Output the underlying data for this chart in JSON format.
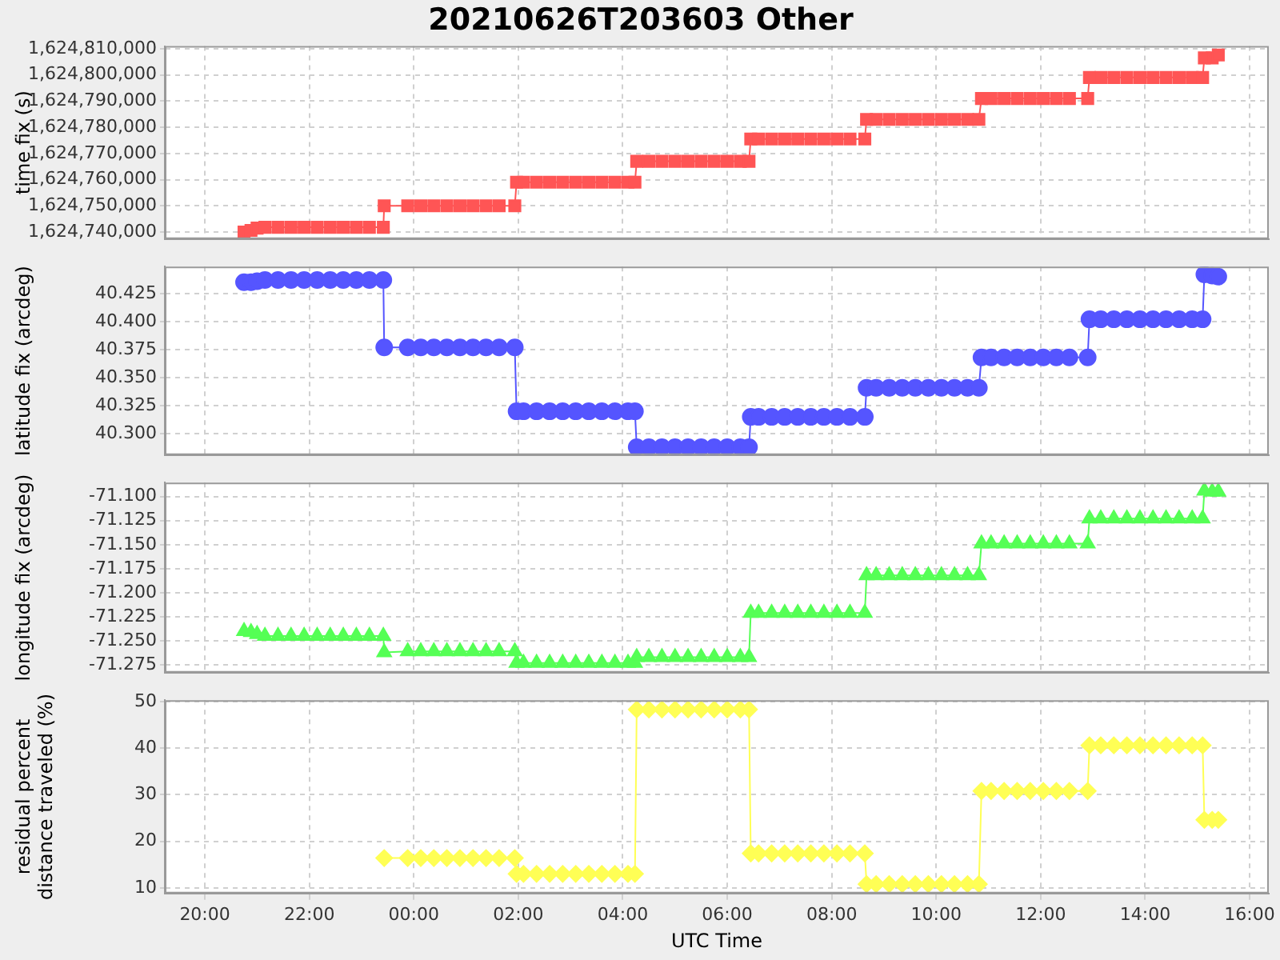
{
  "chart_data": [
    {
      "type": "line",
      "title": "20210626T203603 Other",
      "ylabel": "time fix (s)",
      "marker": "square",
      "grid": true,
      "tick_labels": "y",
      "x": [
        "2021-06-26T20:45",
        "2021-06-26T20:53",
        "2021-06-26T21:00",
        "2021-06-26T21:09",
        "2021-06-26T21:24",
        "2021-06-26T21:39",
        "2021-06-26T21:54",
        "2021-06-26T22:09",
        "2021-06-26T22:24",
        "2021-06-26T22:39",
        "2021-06-26T22:54",
        "2021-06-26T23:09",
        "2021-06-26T23:25",
        "2021-06-26T23:26",
        "2021-06-26T23:53",
        "2021-06-27T00:08",
        "2021-06-27T00:23",
        "2021-06-27T00:38",
        "2021-06-27T00:53",
        "2021-06-27T01:08",
        "2021-06-27T01:23",
        "2021-06-27T01:38",
        "2021-06-27T01:56",
        "2021-06-27T01:58",
        "2021-06-27T02:06",
        "2021-06-27T02:21",
        "2021-06-27T02:36",
        "2021-06-27T02:51",
        "2021-06-27T03:06",
        "2021-06-27T03:21",
        "2021-06-27T03:36",
        "2021-06-27T03:51",
        "2021-06-27T04:06",
        "2021-06-27T04:14",
        "2021-06-27T04:16",
        "2021-06-27T04:30",
        "2021-06-27T04:45",
        "2021-06-27T05:00",
        "2021-06-27T05:15",
        "2021-06-27T05:30",
        "2021-06-27T05:45",
        "2021-06-27T06:00",
        "2021-06-27T06:15",
        "2021-06-27T06:25",
        "2021-06-27T06:27",
        "2021-06-27T06:36",
        "2021-06-27T06:51",
        "2021-06-27T07:06",
        "2021-06-27T07:21",
        "2021-06-27T07:36",
        "2021-06-27T07:51",
        "2021-06-27T08:06",
        "2021-06-27T08:21",
        "2021-06-27T08:38",
        "2021-06-27T08:40",
        "2021-06-27T08:51",
        "2021-06-27T09:06",
        "2021-06-27T09:21",
        "2021-06-27T09:36",
        "2021-06-27T09:51",
        "2021-06-27T10:06",
        "2021-06-27T10:21",
        "2021-06-27T10:36",
        "2021-06-27T10:49",
        "2021-06-27T10:52",
        "2021-06-27T11:03",
        "2021-06-27T11:18",
        "2021-06-27T11:33",
        "2021-06-27T11:48",
        "2021-06-27T12:03",
        "2021-06-27T12:18",
        "2021-06-27T12:33",
        "2021-06-27T12:54",
        "2021-06-27T12:56",
        "2021-06-27T13:09",
        "2021-06-27T13:24",
        "2021-06-27T13:39",
        "2021-06-27T13:54",
        "2021-06-27T14:09",
        "2021-06-27T14:24",
        "2021-06-27T14:39",
        "2021-06-27T14:54",
        "2021-06-27T15:06",
        "2021-06-27T15:08",
        "2021-06-27T15:17",
        "2021-06-27T15:24"
      ],
      "series": [
        {
          "color": "#ff5555",
          "values": [
            1624740000,
            1624740600,
            1624741500,
            1624741800,
            1624741800,
            1624741800,
            1624741800,
            1624741800,
            1624741800,
            1624741800,
            1624741800,
            1624741800,
            1624741800,
            1624750000,
            1624750000,
            1624750000,
            1624750000,
            1624750000,
            1624750000,
            1624750000,
            1624750000,
            1624750000,
            1624750000,
            1624759000,
            1624759000,
            1624759000,
            1624759000,
            1624759000,
            1624759000,
            1624759000,
            1624759000,
            1624759000,
            1624759000,
            1624759000,
            1624767000,
            1624767000,
            1624767000,
            1624767000,
            1624767000,
            1624767000,
            1624767000,
            1624767000,
            1624767000,
            1624767000,
            1624775500,
            1624775500,
            1624775500,
            1624775500,
            1624775500,
            1624775500,
            1624775500,
            1624775500,
            1624775500,
            1624775500,
            1624783000,
            1624783000,
            1624783000,
            1624783000,
            1624783000,
            1624783000,
            1624783000,
            1624783000,
            1624783000,
            1624783000,
            1624791000,
            1624791000,
            1624791000,
            1624791000,
            1624791000,
            1624791000,
            1624791000,
            1624791000,
            1624791000,
            1624799000,
            1624799000,
            1624799000,
            1624799000,
            1624799000,
            1624799000,
            1624799000,
            1624799000,
            1624799000,
            1624799000,
            1624806500,
            1624806500,
            1624807600
          ]
        }
      ],
      "xlim": [
        "2021-06-26T19:14",
        "2021-06-27T16:22"
      ],
      "xticks": [
        "2021-06-26T20:00",
        "2021-06-26T22:00",
        "2021-06-27T00:00",
        "2021-06-27T02:00",
        "2021-06-27T04:00",
        "2021-06-27T06:00",
        "2021-06-27T08:00",
        "2021-06-27T10:00",
        "2021-06-27T12:00",
        "2021-06-27T14:00",
        "2021-06-27T16:00"
      ],
      "ylim": [
        1624737300,
        1624811000
      ],
      "yticks": [
        {
          "value": 1624740000,
          "label": "1,624,740,000"
        },
        {
          "value": 1624750000,
          "label": "1,624,750,000"
        },
        {
          "value": 1624760000,
          "label": "1,624,760,000"
        },
        {
          "value": 1624770000,
          "label": "1,624,770,000"
        },
        {
          "value": 1624780000,
          "label": "1,624,780,000"
        },
        {
          "value": 1624790000,
          "label": "1,624,790,000"
        },
        {
          "value": 1624800000,
          "label": "1,624,800,000"
        },
        {
          "value": 1624810000,
          "label": "1,624,810,000"
        }
      ]
    },
    {
      "type": "line",
      "ylabel": "latitude fix (arcdeg)",
      "marker": "circle",
      "grid": true,
      "tick_labels": "y",
      "x": [
        "2021-06-26T20:45",
        "2021-06-26T20:53",
        "2021-06-26T21:00",
        "2021-06-26T21:09",
        "2021-06-26T21:24",
        "2021-06-26T21:39",
        "2021-06-26T21:54",
        "2021-06-26T22:09",
        "2021-06-26T22:24",
        "2021-06-26T22:39",
        "2021-06-26T22:54",
        "2021-06-26T23:09",
        "2021-06-26T23:25",
        "2021-06-26T23:26",
        "2021-06-26T23:53",
        "2021-06-27T00:08",
        "2021-06-27T00:23",
        "2021-06-27T00:38",
        "2021-06-27T00:53",
        "2021-06-27T01:08",
        "2021-06-27T01:23",
        "2021-06-27T01:38",
        "2021-06-27T01:56",
        "2021-06-27T01:58",
        "2021-06-27T02:06",
        "2021-06-27T02:21",
        "2021-06-27T02:36",
        "2021-06-27T02:51",
        "2021-06-27T03:06",
        "2021-06-27T03:21",
        "2021-06-27T03:36",
        "2021-06-27T03:51",
        "2021-06-27T04:06",
        "2021-06-27T04:14",
        "2021-06-27T04:16",
        "2021-06-27T04:30",
        "2021-06-27T04:45",
        "2021-06-27T05:00",
        "2021-06-27T05:15",
        "2021-06-27T05:30",
        "2021-06-27T05:45",
        "2021-06-27T06:00",
        "2021-06-27T06:15",
        "2021-06-27T06:25",
        "2021-06-27T06:27",
        "2021-06-27T06:36",
        "2021-06-27T06:51",
        "2021-06-27T07:06",
        "2021-06-27T07:21",
        "2021-06-27T07:36",
        "2021-06-27T07:51",
        "2021-06-27T08:06",
        "2021-06-27T08:21",
        "2021-06-27T08:38",
        "2021-06-27T08:40",
        "2021-06-27T08:51",
        "2021-06-27T09:06",
        "2021-06-27T09:21",
        "2021-06-27T09:36",
        "2021-06-27T09:51",
        "2021-06-27T10:06",
        "2021-06-27T10:21",
        "2021-06-27T10:36",
        "2021-06-27T10:49",
        "2021-06-27T10:52",
        "2021-06-27T11:03",
        "2021-06-27T11:18",
        "2021-06-27T11:33",
        "2021-06-27T11:48",
        "2021-06-27T12:03",
        "2021-06-27T12:18",
        "2021-06-27T12:33",
        "2021-06-27T12:54",
        "2021-06-27T12:56",
        "2021-06-27T13:09",
        "2021-06-27T13:24",
        "2021-06-27T13:39",
        "2021-06-27T13:54",
        "2021-06-27T14:09",
        "2021-06-27T14:24",
        "2021-06-27T14:39",
        "2021-06-27T14:54",
        "2021-06-27T15:06",
        "2021-06-27T15:08",
        "2021-06-27T15:17",
        "2021-06-27T15:24"
      ],
      "series": [
        {
          "color": "#5555ff",
          "values": [
            40.435,
            40.435,
            40.436,
            40.437,
            40.437,
            40.437,
            40.437,
            40.437,
            40.437,
            40.437,
            40.437,
            40.437,
            40.437,
            40.377,
            40.377,
            40.377,
            40.377,
            40.377,
            40.377,
            40.377,
            40.377,
            40.377,
            40.377,
            40.32,
            40.32,
            40.32,
            40.32,
            40.32,
            40.32,
            40.32,
            40.32,
            40.32,
            40.32,
            40.32,
            40.288,
            40.288,
            40.288,
            40.288,
            40.288,
            40.288,
            40.288,
            40.288,
            40.288,
            40.288,
            40.315,
            40.315,
            40.315,
            40.315,
            40.315,
            40.315,
            40.315,
            40.315,
            40.315,
            40.315,
            40.341,
            40.341,
            40.341,
            40.341,
            40.341,
            40.341,
            40.341,
            40.341,
            40.341,
            40.341,
            40.368,
            40.368,
            40.368,
            40.368,
            40.368,
            40.368,
            40.368,
            40.368,
            40.368,
            40.402,
            40.402,
            40.402,
            40.402,
            40.402,
            40.402,
            40.402,
            40.402,
            40.402,
            40.402,
            40.442,
            40.441,
            40.44
          ]
        }
      ],
      "xlim": [
        "2021-06-26T19:14",
        "2021-06-27T16:22"
      ],
      "xticks": [
        "2021-06-26T20:00",
        "2021-06-26T22:00",
        "2021-06-27T00:00",
        "2021-06-27T02:00",
        "2021-06-27T04:00",
        "2021-06-27T06:00",
        "2021-06-27T08:00",
        "2021-06-27T10:00",
        "2021-06-27T12:00",
        "2021-06-27T14:00",
        "2021-06-27T16:00"
      ],
      "ylim": [
        40.281,
        40.449
      ],
      "yticks": [
        {
          "value": 40.3,
          "label": "40.300"
        },
        {
          "value": 40.325,
          "label": "40.325"
        },
        {
          "value": 40.35,
          "label": "40.350"
        },
        {
          "value": 40.375,
          "label": "40.375"
        },
        {
          "value": 40.4,
          "label": "40.400"
        },
        {
          "value": 40.425,
          "label": "40.425"
        }
      ]
    },
    {
      "type": "line",
      "ylabel": "longitude fix (arcdeg)",
      "marker": "triangle",
      "grid": true,
      "tick_labels": "y",
      "x": [
        "2021-06-26T20:45",
        "2021-06-26T20:53",
        "2021-06-26T21:00",
        "2021-06-26T21:09",
        "2021-06-26T21:24",
        "2021-06-26T21:39",
        "2021-06-26T21:54",
        "2021-06-26T22:09",
        "2021-06-26T22:24",
        "2021-06-26T22:39",
        "2021-06-26T22:54",
        "2021-06-26T23:09",
        "2021-06-26T23:25",
        "2021-06-26T23:26",
        "2021-06-26T23:53",
        "2021-06-27T00:08",
        "2021-06-27T00:23",
        "2021-06-27T00:38",
        "2021-06-27T00:53",
        "2021-06-27T01:08",
        "2021-06-27T01:23",
        "2021-06-27T01:38",
        "2021-06-27T01:56",
        "2021-06-27T01:58",
        "2021-06-27T02:06",
        "2021-06-27T02:21",
        "2021-06-27T02:36",
        "2021-06-27T02:51",
        "2021-06-27T03:06",
        "2021-06-27T03:21",
        "2021-06-27T03:36",
        "2021-06-27T03:51",
        "2021-06-27T04:06",
        "2021-06-27T04:14",
        "2021-06-27T04:16",
        "2021-06-27T04:30",
        "2021-06-27T04:45",
        "2021-06-27T05:00",
        "2021-06-27T05:15",
        "2021-06-27T05:30",
        "2021-06-27T05:45",
        "2021-06-27T06:00",
        "2021-06-27T06:15",
        "2021-06-27T06:25",
        "2021-06-27T06:27",
        "2021-06-27T06:36",
        "2021-06-27T06:51",
        "2021-06-27T07:06",
        "2021-06-27T07:21",
        "2021-06-27T07:36",
        "2021-06-27T07:51",
        "2021-06-27T08:06",
        "2021-06-27T08:21",
        "2021-06-27T08:38",
        "2021-06-27T08:40",
        "2021-06-27T08:51",
        "2021-06-27T09:06",
        "2021-06-27T09:21",
        "2021-06-27T09:36",
        "2021-06-27T09:51",
        "2021-06-27T10:06",
        "2021-06-27T10:21",
        "2021-06-27T10:36",
        "2021-06-27T10:49",
        "2021-06-27T10:52",
        "2021-06-27T11:03",
        "2021-06-27T11:18",
        "2021-06-27T11:33",
        "2021-06-27T11:48",
        "2021-06-27T12:03",
        "2021-06-27T12:18",
        "2021-06-27T12:33",
        "2021-06-27T12:54",
        "2021-06-27T12:56",
        "2021-06-27T13:09",
        "2021-06-27T13:24",
        "2021-06-27T13:39",
        "2021-06-27T13:54",
        "2021-06-27T14:09",
        "2021-06-27T14:24",
        "2021-06-27T14:39",
        "2021-06-27T14:54",
        "2021-06-27T15:06",
        "2021-06-27T15:08",
        "2021-06-27T15:17",
        "2021-06-27T15:24"
      ],
      "series": [
        {
          "color": "#55ff55",
          "values": [
            -71.24,
            -71.241,
            -71.243,
            -71.245,
            -71.245,
            -71.245,
            -71.245,
            -71.245,
            -71.245,
            -71.245,
            -71.245,
            -71.245,
            -71.245,
            -71.262,
            -71.261,
            -71.261,
            -71.261,
            -71.261,
            -71.261,
            -71.261,
            -71.261,
            -71.261,
            -71.261,
            -71.273,
            -71.273,
            -71.273,
            -71.273,
            -71.273,
            -71.273,
            -71.273,
            -71.273,
            -71.273,
            -71.273,
            -71.273,
            -71.267,
            -71.267,
            -71.267,
            -71.267,
            -71.267,
            -71.267,
            -71.267,
            -71.267,
            -71.267,
            -71.267,
            -71.221,
            -71.221,
            -71.221,
            -71.221,
            -71.221,
            -71.221,
            -71.221,
            -71.221,
            -71.221,
            -71.221,
            -71.182,
            -71.182,
            -71.182,
            -71.182,
            -71.182,
            -71.182,
            -71.182,
            -71.182,
            -71.182,
            -71.182,
            -71.149,
            -71.149,
            -71.149,
            -71.149,
            -71.149,
            -71.149,
            -71.149,
            -71.149,
            -71.149,
            -71.123,
            -71.123,
            -71.123,
            -71.123,
            -71.123,
            -71.123,
            -71.123,
            -71.123,
            -71.123,
            -71.123,
            -71.094,
            -71.095,
            -71.095
          ]
        }
      ],
      "xlim": [
        "2021-06-26T19:14",
        "2021-06-27T16:22"
      ],
      "xticks": [
        "2021-06-26T20:00",
        "2021-06-26T22:00",
        "2021-06-27T00:00",
        "2021-06-27T02:00",
        "2021-06-27T04:00",
        "2021-06-27T06:00",
        "2021-06-27T08:00",
        "2021-06-27T10:00",
        "2021-06-27T12:00",
        "2021-06-27T14:00",
        "2021-06-27T16:00"
      ],
      "ylim": [
        -71.283,
        -71.0855
      ],
      "yticks": [
        {
          "value": -71.275,
          "label": "-71.275"
        },
        {
          "value": -71.25,
          "label": "-71.250"
        },
        {
          "value": -71.225,
          "label": "-71.225"
        },
        {
          "value": -71.2,
          "label": "-71.200"
        },
        {
          "value": -71.175,
          "label": "-71.175"
        },
        {
          "value": -71.15,
          "label": "-71.150"
        },
        {
          "value": -71.125,
          "label": "-71.125"
        },
        {
          "value": -71.1,
          "label": "-71.100"
        }
      ]
    },
    {
      "type": "line",
      "xlabel": "UTC Time",
      "ylabel": "residual percent distance traveled (%)",
      "marker": "diamond",
      "grid": true,
      "x": [
        "2021-06-26T23:26",
        "2021-06-26T23:53",
        "2021-06-27T00:08",
        "2021-06-27T00:23",
        "2021-06-27T00:38",
        "2021-06-27T00:53",
        "2021-06-27T01:08",
        "2021-06-27T01:23",
        "2021-06-27T01:38",
        "2021-06-27T01:56",
        "2021-06-27T01:58",
        "2021-06-27T02:06",
        "2021-06-27T02:21",
        "2021-06-27T02:36",
        "2021-06-27T02:51",
        "2021-06-27T03:06",
        "2021-06-27T03:21",
        "2021-06-27T03:36",
        "2021-06-27T03:51",
        "2021-06-27T04:06",
        "2021-06-27T04:14",
        "2021-06-27T04:16",
        "2021-06-27T04:30",
        "2021-06-27T04:45",
        "2021-06-27T05:00",
        "2021-06-27T05:15",
        "2021-06-27T05:30",
        "2021-06-27T05:45",
        "2021-06-27T06:00",
        "2021-06-27T06:15",
        "2021-06-27T06:25",
        "2021-06-27T06:27",
        "2021-06-27T06:36",
        "2021-06-27T06:51",
        "2021-06-27T07:06",
        "2021-06-27T07:21",
        "2021-06-27T07:36",
        "2021-06-27T07:51",
        "2021-06-27T08:06",
        "2021-06-27T08:21",
        "2021-06-27T08:38",
        "2021-06-27T08:40",
        "2021-06-27T08:51",
        "2021-06-27T09:06",
        "2021-06-27T09:21",
        "2021-06-27T09:36",
        "2021-06-27T09:51",
        "2021-06-27T10:06",
        "2021-06-27T10:21",
        "2021-06-27T10:36",
        "2021-06-27T10:49",
        "2021-06-27T10:52",
        "2021-06-27T11:03",
        "2021-06-27T11:18",
        "2021-06-27T11:33",
        "2021-06-27T11:48",
        "2021-06-27T12:03",
        "2021-06-27T12:18",
        "2021-06-27T12:33",
        "2021-06-27T12:54",
        "2021-06-27T12:56",
        "2021-06-27T13:09",
        "2021-06-27T13:24",
        "2021-06-27T13:39",
        "2021-06-27T13:54",
        "2021-06-27T14:09",
        "2021-06-27T14:24",
        "2021-06-27T14:39",
        "2021-06-27T14:54",
        "2021-06-27T15:06",
        "2021-06-27T15:08",
        "2021-06-27T15:17",
        "2021-06-27T15:24"
      ],
      "series": [
        {
          "color": "#ffff55",
          "values": [
            16.4,
            16.4,
            16.4,
            16.4,
            16.4,
            16.4,
            16.4,
            16.4,
            16.4,
            16.4,
            13.0,
            13.0,
            13.0,
            13.0,
            13.0,
            13.0,
            13.0,
            13.0,
            13.0,
            13.0,
            13.0,
            48.3,
            48.3,
            48.3,
            48.3,
            48.3,
            48.3,
            48.3,
            48.3,
            48.3,
            48.3,
            17.4,
            17.4,
            17.4,
            17.4,
            17.4,
            17.4,
            17.4,
            17.4,
            17.4,
            17.4,
            10.8,
            10.8,
            10.8,
            10.8,
            10.8,
            10.8,
            10.8,
            10.8,
            10.8,
            10.8,
            30.8,
            30.8,
            30.8,
            30.8,
            30.8,
            30.8,
            30.8,
            30.8,
            30.8,
            40.6,
            40.6,
            40.6,
            40.6,
            40.6,
            40.6,
            40.6,
            40.6,
            40.6,
            40.6,
            24.6,
            24.6,
            24.6
          ]
        }
      ],
      "xlim": [
        "2021-06-26T19:14",
        "2021-06-27T16:22"
      ],
      "xticks": [
        {
          "value": "2021-06-26T20:00",
          "label": "20:00"
        },
        {
          "value": "2021-06-26T22:00",
          "label": "22:00"
        },
        {
          "value": "2021-06-27T00:00",
          "label": "00:00"
        },
        {
          "value": "2021-06-27T02:00",
          "label": "02:00"
        },
        {
          "value": "2021-06-27T04:00",
          "label": "04:00"
        },
        {
          "value": "2021-06-27T06:00",
          "label": "06:00"
        },
        {
          "value": "2021-06-27T08:00",
          "label": "08:00"
        },
        {
          "value": "2021-06-27T10:00",
          "label": "10:00"
        },
        {
          "value": "2021-06-27T12:00",
          "label": "12:00"
        },
        {
          "value": "2021-06-27T14:00",
          "label": "14:00"
        },
        {
          "value": "2021-06-27T16:00",
          "label": "16:00"
        }
      ],
      "ylim": [
        8.8,
        50.3
      ],
      "yticks": [
        10,
        20,
        30,
        40,
        50
      ]
    }
  ]
}
